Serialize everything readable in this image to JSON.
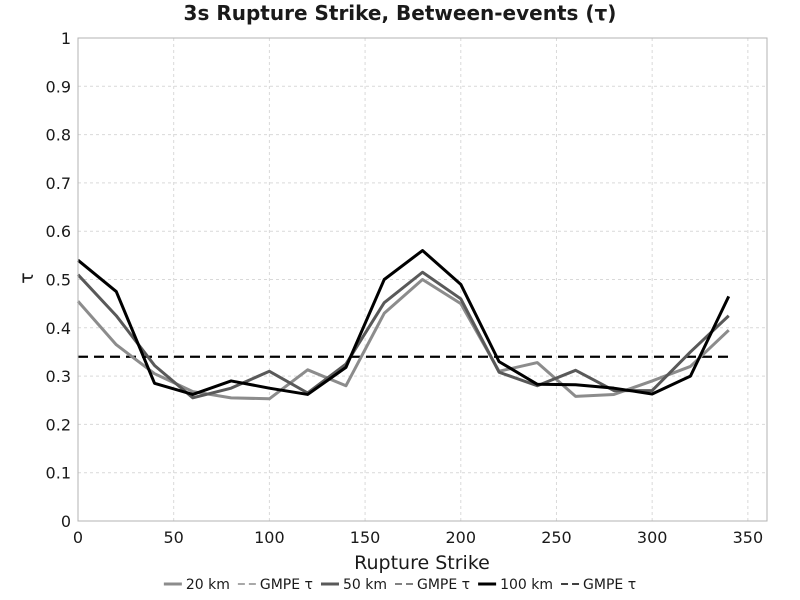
{
  "chart_data": {
    "type": "line",
    "title": "3s Rupture Strike, Between-events (τ)",
    "xlabel": "Rupture Strike",
    "ylabel": "τ",
    "xlim": [
      0,
      360
    ],
    "ylim": [
      0,
      1
    ],
    "x_ticks": [
      0,
      50,
      100,
      150,
      200,
      250,
      300,
      350
    ],
    "y_ticks": [
      0,
      0.1,
      0.2,
      0.3,
      0.4,
      0.5,
      0.6,
      0.7,
      0.8,
      0.9,
      1
    ],
    "y_tick_labels": [
      "0",
      "0.1",
      "0.2",
      "0.3",
      "0.4",
      "0.5",
      "0.6",
      "0.7",
      "0.8",
      "0.9",
      "1"
    ],
    "grid": true,
    "legend_position": "bottom",
    "x": [
      0,
      20,
      40,
      60,
      80,
      100,
      120,
      140,
      160,
      180,
      200,
      220,
      240,
      260,
      280,
      300,
      320,
      340
    ],
    "series": [
      {
        "name": "20 km",
        "color": "#8c8c8c",
        "style": "solid",
        "values": [
          0.455,
          0.365,
          0.305,
          0.268,
          0.255,
          0.253,
          0.313,
          0.28,
          0.43,
          0.5,
          0.45,
          0.31,
          0.328,
          0.258,
          0.262,
          0.29,
          0.32,
          0.395
        ]
      },
      {
        "name": "GMPE τ",
        "color": "#8c8c8c",
        "style": "dashed",
        "values": [
          0.34,
          0.34,
          0.34,
          0.34,
          0.34,
          0.34,
          0.34,
          0.34,
          0.34,
          0.34,
          0.34,
          0.34,
          0.34,
          0.34,
          0.34,
          0.34,
          0.34,
          0.34
        ]
      },
      {
        "name": "50 km",
        "color": "#595959",
        "style": "solid",
        "values": [
          0.51,
          0.425,
          0.322,
          0.255,
          0.275,
          0.31,
          0.265,
          0.325,
          0.452,
          0.515,
          0.46,
          0.308,
          0.28,
          0.312,
          0.27,
          0.27,
          0.35,
          0.425
        ]
      },
      {
        "name": "GMPE τ",
        "color": "#595959",
        "style": "dashed",
        "values": [
          0.34,
          0.34,
          0.34,
          0.34,
          0.34,
          0.34,
          0.34,
          0.34,
          0.34,
          0.34,
          0.34,
          0.34,
          0.34,
          0.34,
          0.34,
          0.34,
          0.34,
          0.34
        ]
      },
      {
        "name": "100 km",
        "color": "#000000",
        "style": "solid",
        "values": [
          0.54,
          0.475,
          0.285,
          0.262,
          0.29,
          0.275,
          0.262,
          0.318,
          0.5,
          0.56,
          0.49,
          0.33,
          0.283,
          0.282,
          0.275,
          0.263,
          0.3,
          0.465
        ]
      },
      {
        "name": "GMPE τ",
        "color": "#000000",
        "style": "dashed",
        "values": [
          0.34,
          0.34,
          0.34,
          0.34,
          0.34,
          0.34,
          0.34,
          0.34,
          0.34,
          0.34,
          0.34,
          0.34,
          0.34,
          0.34,
          0.34,
          0.34,
          0.34,
          0.34
        ]
      }
    ]
  }
}
